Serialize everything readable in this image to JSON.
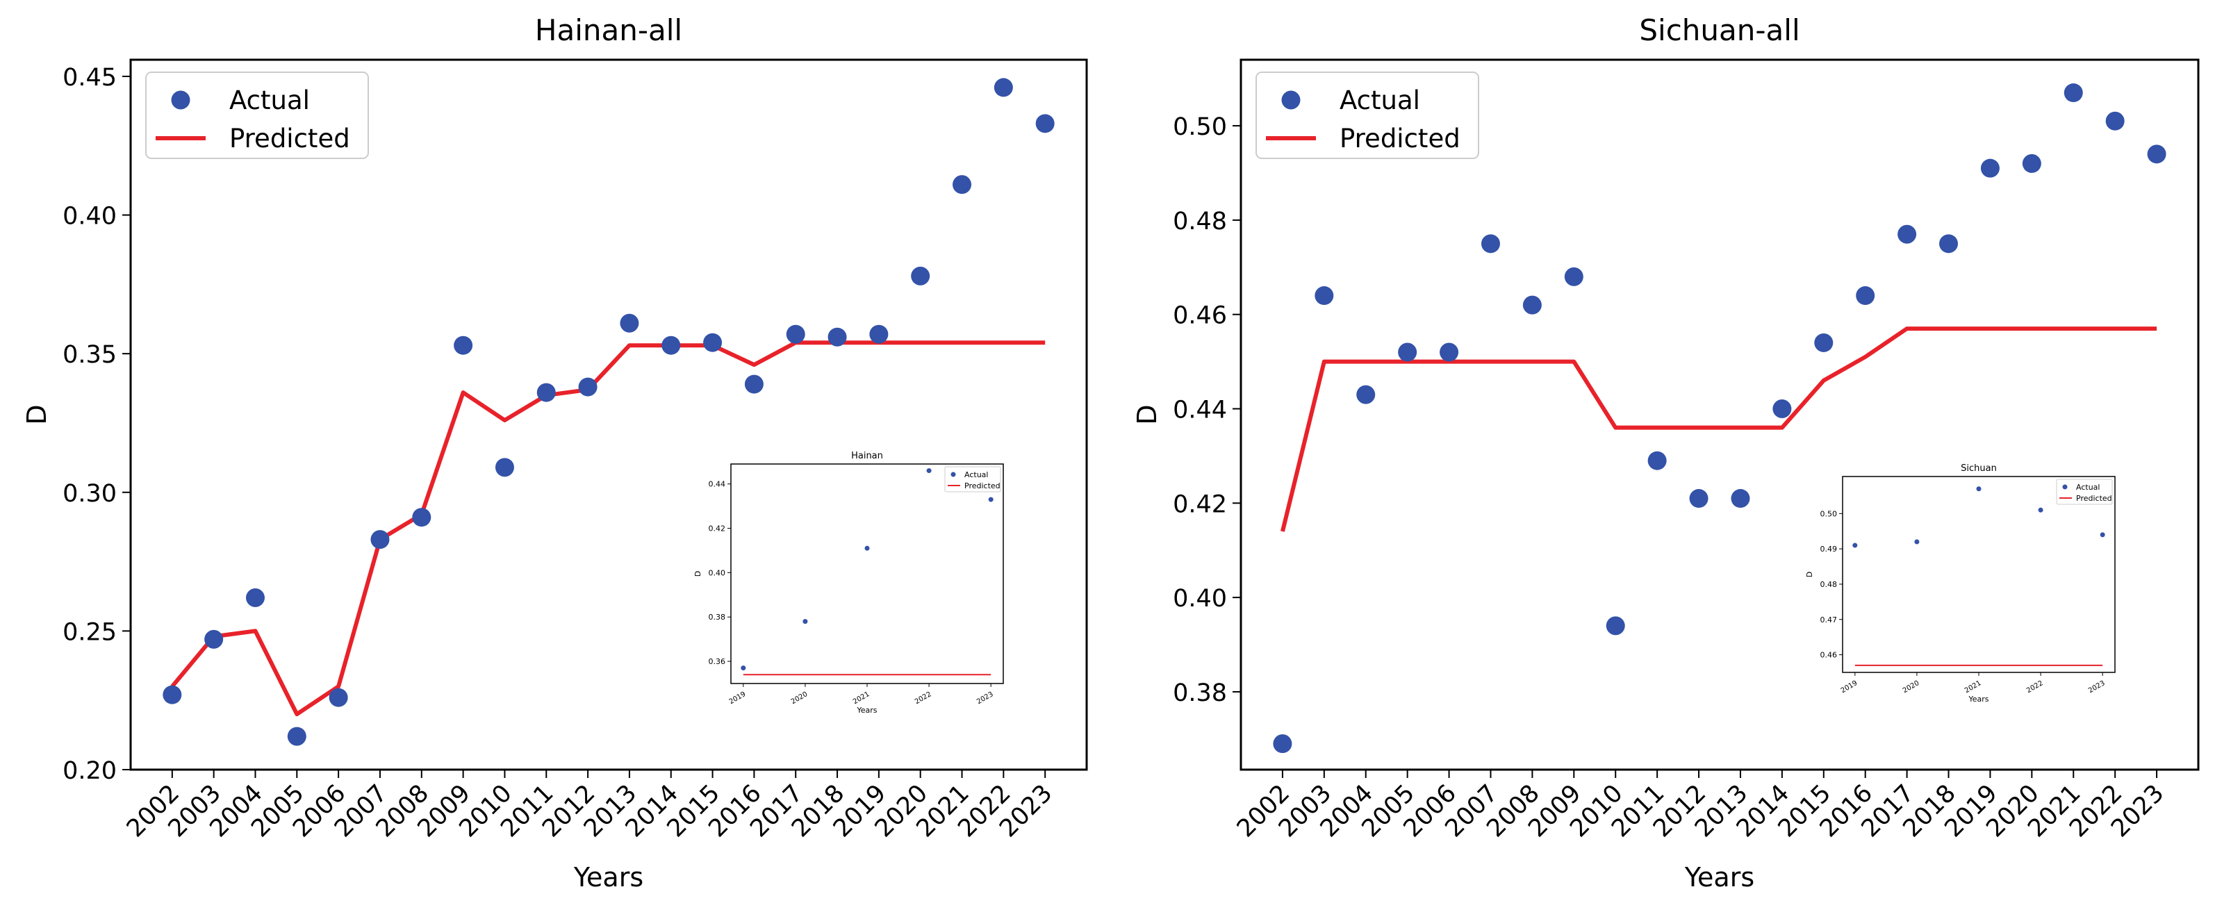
{
  "colors": {
    "actual": "#3352a8",
    "predicted": "#e8222a",
    "axes": "#000000"
  },
  "chart_data": [
    {
      "id": "hainan",
      "type": "scatter+line",
      "title": "Hainan-all",
      "xlabel": "Years",
      "ylabel": "D",
      "legend": {
        "position": "top-left",
        "entries": [
          "Actual",
          "Predicted"
        ]
      },
      "x": [
        2002,
        2003,
        2004,
        2005,
        2006,
        2007,
        2008,
        2009,
        2010,
        2011,
        2012,
        2013,
        2014,
        2015,
        2016,
        2017,
        2018,
        2019,
        2020,
        2021,
        2022,
        2023
      ],
      "series": [
        {
          "name": "Actual",
          "kind": "scatter",
          "values": [
            0.227,
            0.247,
            0.262,
            0.212,
            0.226,
            0.283,
            0.291,
            0.353,
            0.309,
            0.336,
            0.338,
            0.361,
            0.353,
            0.354,
            0.339,
            0.357,
            0.356,
            0.357,
            0.378,
            0.411,
            0.446,
            0.433
          ]
        },
        {
          "name": "Predicted",
          "kind": "line",
          "values": [
            0.23,
            0.248,
            0.25,
            0.22,
            0.23,
            0.283,
            0.292,
            0.336,
            0.326,
            0.335,
            0.337,
            0.353,
            0.353,
            0.353,
            0.346,
            0.354,
            0.354,
            0.354,
            0.354,
            0.354,
            0.354,
            0.354
          ]
        }
      ],
      "xticks": [
        "2002",
        "2003",
        "2004",
        "2005",
        "2006",
        "2007",
        "2008",
        "2009",
        "2010",
        "2011",
        "2012",
        "2013",
        "2014",
        "2015",
        "2016",
        "2017",
        "2018",
        "2019",
        "2020",
        "2021",
        "2022",
        "2023"
      ],
      "yticks": [
        0.2,
        0.25,
        0.3,
        0.35,
        0.4,
        0.45
      ],
      "ytick_labels": [
        "0.20",
        "0.25",
        "0.30",
        "0.35",
        "0.40",
        "0.45"
      ],
      "xlim": [
        2001.0,
        2024.0
      ],
      "ylim": [
        0.2,
        0.456
      ],
      "inset": {
        "title": "Hainan",
        "xlabel": "Years",
        "ylabel": "D",
        "legend": {
          "position": "top-right",
          "entries": [
            "Actual",
            "Predicted"
          ]
        },
        "x": [
          2019,
          2020,
          2021,
          2022,
          2023
        ],
        "actual": [
          0.357,
          0.378,
          0.411,
          0.446,
          0.433
        ],
        "predicted": [
          0.354,
          0.354,
          0.354,
          0.354,
          0.354
        ],
        "xticks": [
          "2019",
          "2020",
          "2021",
          "2022",
          "2023"
        ],
        "yticks": [
          0.36,
          0.38,
          0.4,
          0.42,
          0.44
        ],
        "ytick_labels": [
          "0.36",
          "0.38",
          "0.40",
          "0.42",
          "0.44"
        ],
        "xlim": [
          2018.8,
          2023.2
        ],
        "ylim": [
          0.35,
          0.449
        ]
      }
    },
    {
      "id": "sichuan",
      "type": "scatter+line",
      "title": "Sichuan-all",
      "xlabel": "Years",
      "ylabel": "D",
      "legend": {
        "position": "top-left",
        "entries": [
          "Actual",
          "Predicted"
        ]
      },
      "x": [
        2002,
        2003,
        2004,
        2005,
        2006,
        2007,
        2008,
        2009,
        2010,
        2011,
        2012,
        2013,
        2014,
        2015,
        2016,
        2017,
        2018,
        2019,
        2020,
        2021,
        2022,
        2023
      ],
      "series": [
        {
          "name": "Actual",
          "kind": "scatter",
          "values": [
            0.369,
            0.464,
            0.443,
            0.452,
            0.452,
            0.475,
            0.462,
            0.468,
            0.394,
            0.429,
            0.421,
            0.421,
            0.44,
            0.454,
            0.464,
            0.477,
            0.475,
            0.491,
            0.492,
            0.507,
            0.501,
            0.494
          ]
        },
        {
          "name": "Predicted",
          "kind": "line",
          "values": [
            0.414,
            0.45,
            0.45,
            0.45,
            0.45,
            0.45,
            0.45,
            0.45,
            0.436,
            0.436,
            0.436,
            0.436,
            0.436,
            0.446,
            0.451,
            0.457,
            0.457,
            0.457,
            0.457,
            0.457,
            0.457,
            0.457
          ]
        }
      ],
      "xticks": [
        "2002",
        "2003",
        "2004",
        "2005",
        "2006",
        "2007",
        "2008",
        "2009",
        "2010",
        "2011",
        "2012",
        "2013",
        "2014",
        "2015",
        "2016",
        "2017",
        "2018",
        "2019",
        "2020",
        "2021",
        "2022",
        "2023"
      ],
      "yticks": [
        0.38,
        0.4,
        0.42,
        0.44,
        0.46,
        0.48,
        0.5
      ],
      "ytick_labels": [
        "0.38",
        "0.40",
        "0.42",
        "0.44",
        "0.46",
        "0.48",
        "0.50"
      ],
      "xlim": [
        2001.0,
        2024.0
      ],
      "ylim": [
        0.3635,
        0.514
      ],
      "inset": {
        "title": "Sichuan",
        "xlabel": "Years",
        "ylabel": "D",
        "legend": {
          "position": "top-right",
          "entries": [
            "Actual",
            "Predicted"
          ]
        },
        "x": [
          2019,
          2020,
          2021,
          2022,
          2023
        ],
        "actual": [
          0.491,
          0.492,
          0.507,
          0.501,
          0.494
        ],
        "predicted": [
          0.457,
          0.457,
          0.457,
          0.457,
          0.457
        ],
        "xticks": [
          "2019",
          "2020",
          "2021",
          "2022",
          "2023"
        ],
        "yticks": [
          0.46,
          0.47,
          0.48,
          0.49,
          0.5
        ],
        "ytick_labels": [
          "0.46",
          "0.47",
          "0.48",
          "0.49",
          "0.50"
        ],
        "xlim": [
          2018.8,
          2023.2
        ],
        "ylim": [
          0.455,
          0.5105
        ]
      }
    }
  ]
}
